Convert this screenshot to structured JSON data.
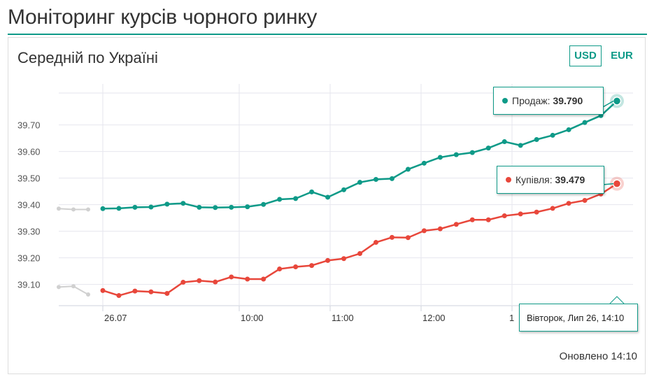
{
  "page": {
    "title": "Моніторинг курсів чорного ринку"
  },
  "card": {
    "title": "Середній по Україні",
    "currencies": {
      "usd": "USD",
      "eur": "EUR",
      "selected": "USD"
    },
    "updated": "Оновлено 14:10"
  },
  "colors": {
    "accent": "#0e9a88",
    "sell": "#0e9a88",
    "buy": "#e8473b",
    "history": "#d0d0d0",
    "grid": "#e6e6ee"
  },
  "tooltips": {
    "sell_label": "Продаж:",
    "sell_value": "39.790",
    "buy_label": "Купівля:",
    "buy_value": "39.479",
    "time": "Вівторок, Лип 26, 14:10"
  },
  "chart_data": {
    "type": "line",
    "x_tick_labels": [
      "26.07",
      "10:00",
      "11:00",
      "12:00",
      "1"
    ],
    "y_tick_labels": [
      "39.10",
      "39.20",
      "39.30",
      "39.40",
      "39.50",
      "39.60",
      "39.70"
    ],
    "ylim": [
      39.02,
      39.82
    ],
    "grid": true,
    "history": {
      "sell": [
        39.385,
        39.382,
        39.382
      ],
      "buy": [
        39.09,
        39.093,
        39.062
      ]
    },
    "series": [
      {
        "key": "sell",
        "values": [
          39.385,
          39.386,
          39.39,
          39.391,
          39.402,
          39.405,
          39.39,
          39.389,
          39.39,
          39.392,
          39.401,
          39.42,
          39.423,
          39.448,
          39.428,
          39.456,
          39.484,
          39.495,
          39.498,
          39.533,
          39.556,
          39.578,
          39.588,
          39.596,
          39.613,
          39.637,
          39.623,
          39.645,
          39.661,
          39.682,
          39.709,
          39.735,
          39.79
        ]
      },
      {
        "key": "buy",
        "values": [
          39.077,
          39.058,
          39.075,
          39.072,
          39.066,
          39.108,
          39.114,
          39.109,
          39.128,
          39.12,
          39.12,
          39.158,
          39.166,
          39.171,
          39.19,
          39.197,
          39.216,
          39.258,
          39.277,
          39.276,
          39.302,
          39.309,
          39.326,
          39.343,
          39.343,
          39.358,
          39.365,
          39.372,
          39.386,
          39.405,
          39.416,
          39.44,
          39.479
        ]
      }
    ]
  }
}
